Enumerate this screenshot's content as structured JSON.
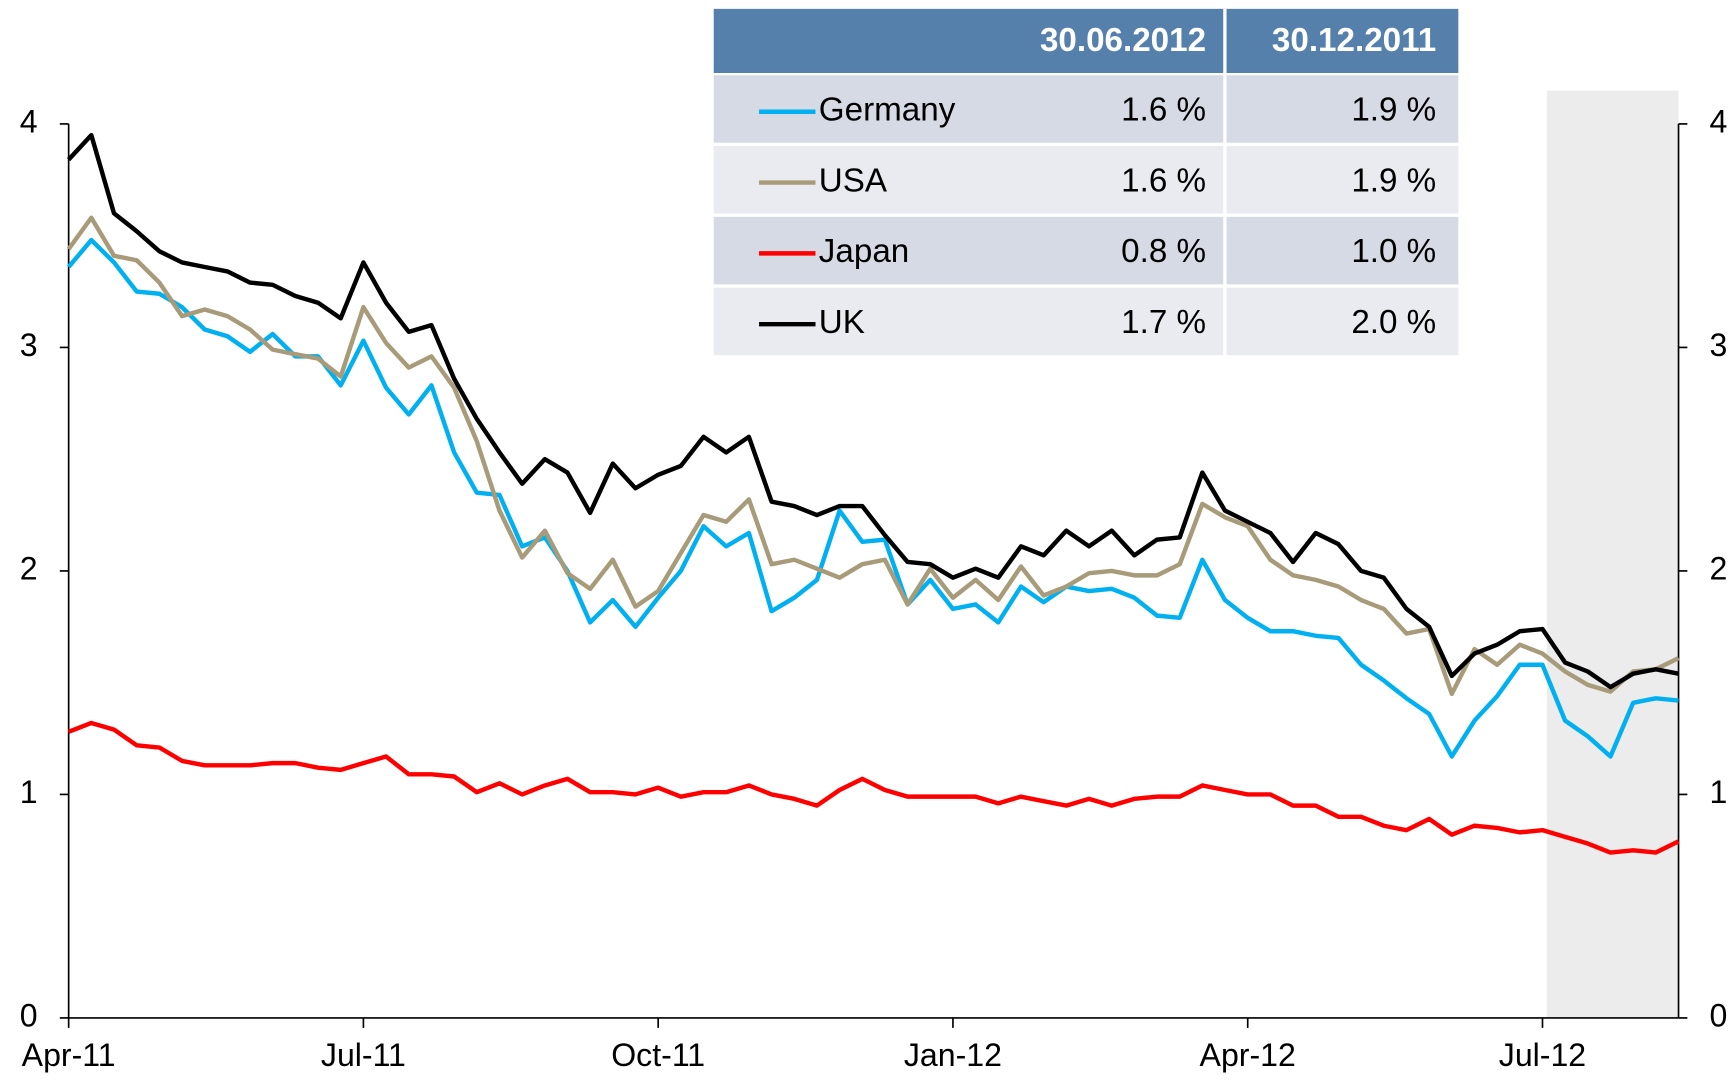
{
  "chart_data": {
    "type": "line",
    "categories": [
      "Apr-11",
      null,
      null,
      null,
      null,
      null,
      null,
      null,
      null,
      null,
      null,
      null,
      null,
      "Jul-11",
      null,
      null,
      null,
      null,
      null,
      null,
      null,
      null,
      null,
      null,
      null,
      null,
      "Oct-11",
      null,
      null,
      null,
      null,
      null,
      null,
      null,
      null,
      null,
      null,
      null,
      null,
      "Jan-12",
      null,
      null,
      null,
      null,
      null,
      null,
      null,
      null,
      null,
      null,
      null,
      null,
      "Apr-12",
      null,
      null,
      null,
      null,
      null,
      null,
      null,
      null,
      null,
      null,
      null,
      null,
      "Jul-12",
      null,
      null,
      null,
      null,
      null,
      null
    ],
    "series": [
      {
        "name": "Germany",
        "color": "#00b0f0",
        "values": [
          3.36,
          3.48,
          3.38,
          3.25,
          3.24,
          3.18,
          3.08,
          3.05,
          2.98,
          3.06,
          2.96,
          2.96,
          2.83,
          3.03,
          2.82,
          2.7,
          2.83,
          2.53,
          2.35,
          2.34,
          2.11,
          2.15,
          2.0,
          1.77,
          1.87,
          1.75,
          1.88,
          2.0,
          2.2,
          2.11,
          2.17,
          1.82,
          1.88,
          1.96,
          2.27,
          2.13,
          2.14,
          1.85,
          1.96,
          1.83,
          1.85,
          1.77,
          1.93,
          1.86,
          1.93,
          1.91,
          1.92,
          1.88,
          1.8,
          1.79,
          2.05,
          1.87,
          1.79,
          1.73,
          1.73,
          1.71,
          1.7,
          1.58,
          1.51,
          1.43,
          1.36,
          1.17,
          1.33,
          1.44,
          1.58,
          1.58,
          1.33,
          1.26,
          1.17,
          1.41,
          1.43,
          1.42
        ]
      },
      {
        "name": "USA",
        "color": "#a89b7a",
        "values": [
          3.44,
          3.58,
          3.41,
          3.39,
          3.29,
          3.14,
          3.17,
          3.14,
          3.08,
          2.99,
          2.97,
          2.95,
          2.87,
          3.18,
          3.02,
          2.91,
          2.96,
          2.82,
          2.58,
          2.27,
          2.06,
          2.18,
          1.99,
          1.92,
          2.05,
          1.84,
          1.91,
          2.08,
          2.25,
          2.22,
          2.32,
          2.03,
          2.05,
          2.01,
          1.97,
          2.03,
          2.05,
          1.85,
          2.01,
          1.88,
          1.96,
          1.87,
          2.02,
          1.89,
          1.93,
          1.99,
          2.0,
          1.98,
          1.98,
          2.03,
          2.3,
          2.24,
          2.2,
          2.05,
          1.98,
          1.96,
          1.93,
          1.87,
          1.83,
          1.72,
          1.74,
          1.45,
          1.65,
          1.58,
          1.67,
          1.63,
          1.55,
          1.49,
          1.46,
          1.55,
          1.56,
          1.61
        ]
      },
      {
        "name": "Japan",
        "color": "#ff0000",
        "values": [
          1.28,
          1.32,
          1.29,
          1.22,
          1.21,
          1.15,
          1.13,
          1.13,
          1.13,
          1.14,
          1.14,
          1.12,
          1.11,
          1.14,
          1.17,
          1.09,
          1.09,
          1.08,
          1.01,
          1.05,
          1.0,
          1.04,
          1.07,
          1.01,
          1.01,
          1.0,
          1.03,
          0.99,
          1.01,
          1.01,
          1.04,
          1.0,
          0.98,
          0.95,
          1.02,
          1.07,
          1.02,
          0.99,
          0.99,
          0.99,
          0.99,
          0.96,
          0.99,
          0.97,
          0.95,
          0.98,
          0.95,
          0.98,
          0.99,
          0.99,
          1.04,
          1.02,
          1.0,
          1.0,
          0.95,
          0.95,
          0.9,
          0.9,
          0.86,
          0.84,
          0.89,
          0.82,
          0.86,
          0.85,
          0.83,
          0.84,
          0.81,
          0.78,
          0.74,
          0.75,
          0.74,
          0.79
        ]
      },
      {
        "name": "UK",
        "color": "#000000",
        "values": [
          3.84,
          3.95,
          3.6,
          3.52,
          3.43,
          3.38,
          3.36,
          3.34,
          3.29,
          3.28,
          3.23,
          3.2,
          3.13,
          3.38,
          3.2,
          3.07,
          3.1,
          2.86,
          2.68,
          2.53,
          2.39,
          2.5,
          2.44,
          2.26,
          2.48,
          2.37,
          2.43,
          2.47,
          2.6,
          2.53,
          2.6,
          2.31,
          2.29,
          2.25,
          2.29,
          2.29,
          2.16,
          2.04,
          2.03,
          1.97,
          2.01,
          1.97,
          2.11,
          2.07,
          2.18,
          2.11,
          2.18,
          2.07,
          2.14,
          2.15,
          2.44,
          2.27,
          2.22,
          2.17,
          2.04,
          2.17,
          2.12,
          2.0,
          1.97,
          1.83,
          1.75,
          1.53,
          1.63,
          1.67,
          1.73,
          1.74,
          1.59,
          1.55,
          1.48,
          1.54,
          1.56,
          1.54
        ]
      }
    ],
    "ylim": [
      0,
      4
    ],
    "yticks": [
      0,
      1,
      2,
      3,
      4
    ],
    "table": {
      "columns": [
        "30.06.2012",
        "30.12.2011"
      ],
      "rows": [
        [
          "1.6 %",
          "1.9 %"
        ],
        [
          "1.6 %",
          "1.9 %"
        ],
        [
          "0.8 %",
          "1.0 %"
        ],
        [
          "1.7 %",
          "2.0 %"
        ]
      ]
    }
  }
}
